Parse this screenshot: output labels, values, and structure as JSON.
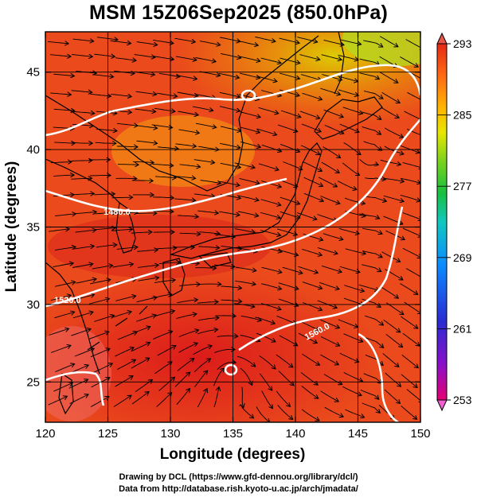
{
  "title": "MSM 15Z06Sep2025 (850.0hPa)",
  "map": {
    "xlabel": "Longitude (degrees)",
    "ylabel": "Latitude  (degrees)",
    "lon_range": [
      120,
      150
    ],
    "lat_range": [
      22.4,
      47.6
    ],
    "lon_ticks": [
      120,
      125,
      130,
      135,
      140,
      145,
      150
    ],
    "lat_ticks": [
      25,
      30,
      35,
      40,
      45
    ],
    "lon_tick_labels": [
      "120",
      "125",
      "130",
      "135",
      "140",
      "145",
      "150"
    ],
    "lat_tick_labels": [
      "25",
      "30",
      "35",
      "40",
      "45"
    ],
    "grid": true,
    "background_color": "#e8421c",
    "contour_labels": [
      "1480.0",
      "1520.0",
      "1560.0"
    ]
  },
  "colorbar": {
    "range": [
      253,
      293
    ],
    "tick_labels": [
      "293",
      "285",
      "277",
      "269",
      "261",
      "253"
    ],
    "colors_bottom_to_top": [
      "#e60073",
      "#8a10c8",
      "#2a2ad2",
      "#0a8cff",
      "#10c8c0",
      "#18c040",
      "#7ad21c",
      "#e8e600",
      "#ffb400",
      "#ff6a14",
      "#e62814"
    ]
  },
  "credits": {
    "line1": "Drawing by DCL (https://www.gfd-dennou.org/library/dcl/)",
    "line2": "Data from http://database.rish.kyoto-u.ac.jp/arch/jmadata/"
  }
}
